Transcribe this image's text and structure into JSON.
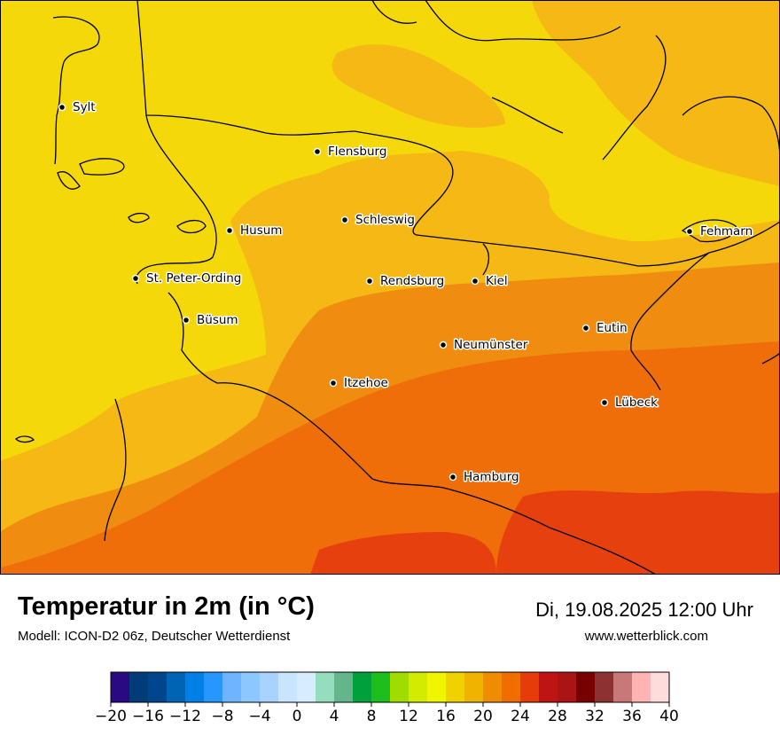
{
  "title": "Temperatur in 2m (in °C)",
  "model": "Modell: ICON-D2 06z, Deutscher Wetterdienst",
  "datetime": "Di, 19.08.2025 12:00 Uhr",
  "website": "www.wetterblick.com",
  "cities": [
    {
      "name": "Sylt"
    },
    {
      "name": "Flensburg"
    },
    {
      "name": "Schleswig"
    },
    {
      "name": "Husum"
    },
    {
      "name": "Fehmarn"
    },
    {
      "name": "St. Peter-Ording"
    },
    {
      "name": "Rendsburg"
    },
    {
      "name": "Kiel"
    },
    {
      "name": "Büsum"
    },
    {
      "name": "Eutin"
    },
    {
      "name": "Neumünster"
    },
    {
      "name": "Itzehoe"
    },
    {
      "name": "Lübeck"
    },
    {
      "name": "Hamburg"
    }
  ],
  "colorbar": {
    "colors": [
      "#2a0a82",
      "#003c78",
      "#00468c",
      "#0064b4",
      "#0080e6",
      "#2896ff",
      "#6eb4ff",
      "#8cc8ff",
      "#aad2ff",
      "#c8e4ff",
      "#d8ecff",
      "#96dcbe",
      "#64b48c",
      "#00a03c",
      "#1ebe1e",
      "#a0dc00",
      "#d2eb00",
      "#f0f500",
      "#f0d200",
      "#f0b400",
      "#f08c00",
      "#f06e00",
      "#e63c0a",
      "#be1414",
      "#aa1414",
      "#780000",
      "#8c3232",
      "#c87878",
      "#ffb4b4",
      "#ffdcdc"
    ],
    "ticks": [
      "−20",
      "−16",
      "−12",
      "−8",
      "−4",
      "0",
      "4",
      "8",
      "12",
      "16",
      "20",
      "24",
      "28",
      "32",
      "36",
      "40"
    ]
  }
}
